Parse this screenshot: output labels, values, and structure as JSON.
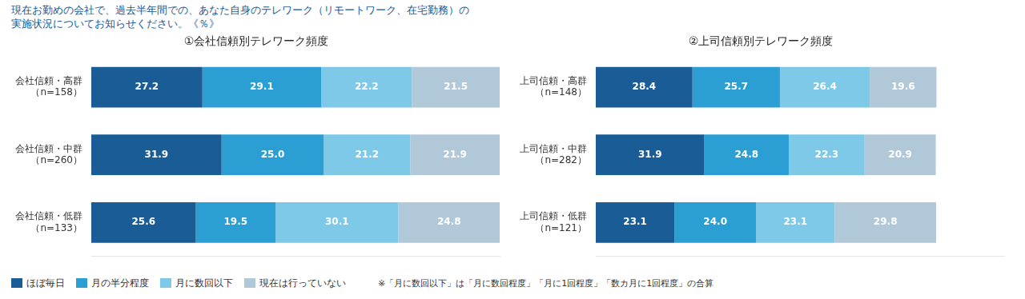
{
  "title": [
    "現在お勤めの会社で、過去半年間での、あなた自身のテレワーク（リモートワーク、在宅勤務）の",
    "実施状況についてお知らせください。《％》"
  ],
  "annotations": [
    "※「月に数回以下」は「月に数回程度」「月に1回程度」「数カ月に1回程度」の合算"
  ],
  "chart_data": [
    {
      "type": "bar",
      "orientation": "horizontal",
      "stacked": true,
      "title": "①会社信頼別テレワーク頻度",
      "categories": [
        [
          "会社信頼・高群",
          "（n=158）"
        ],
        [
          "会社信頼・中群",
          "（n=260）"
        ],
        [
          "会社信頼・低群",
          "（n=133）"
        ]
      ],
      "series": [
        {
          "name": "ほぼ毎日",
          "color": "#1a5c96",
          "values": [
            27.2,
            31.9,
            25.6
          ],
          "value_labels": [
            "27.2",
            "31.9",
            "25.6"
          ]
        },
        {
          "name": "月の半分程度",
          "color": "#2b9fd4",
          "values": [
            29.1,
            25.0,
            19.5
          ],
          "value_labels": [
            "29.1",
            "25.0",
            "19.5"
          ]
        },
        {
          "name": "月に数回以下",
          "color": "#7ec8e8",
          "values": [
            22.2,
            21.2,
            30.1
          ],
          "value_labels": [
            "22.2",
            "21.2",
            "30.1"
          ]
        },
        {
          "name": "現在は行っていない",
          "color": "#b0c8d8",
          "values": [
            21.5,
            21.9,
            24.8
          ],
          "value_labels": [
            "21.5",
            "21.9",
            "24.8"
          ]
        }
      ],
      "xlim": [
        0,
        100
      ],
      "grid": false,
      "tick_labels": "y",
      "data_labels": true,
      "legend": "bottom"
    },
    {
      "type": "bar",
      "orientation": "horizontal",
      "stacked": true,
      "title": "②上司信頼別テレワーク頻度",
      "categories": [
        [
          "上司信頼・高群",
          "（n=148）"
        ],
        [
          "上司信頼・中群",
          "（n=282）"
        ],
        [
          "上司信頼・低群",
          "（n=121）"
        ]
      ],
      "series": [
        {
          "name": "ほぼ毎日",
          "color": "#1a5c96",
          "values": [
            28.4,
            31.9,
            23.1
          ],
          "value_labels": [
            "28.4",
            "31.9",
            "23.1"
          ]
        },
        {
          "name": "月の半分程度",
          "color": "#2b9fd4",
          "values": [
            25.7,
            24.8,
            24.0
          ],
          "value_labels": [
            "25.7",
            "24.8",
            "24.0"
          ]
        },
        {
          "name": "月に数回以下",
          "color": "#7ec8e8",
          "values": [
            26.4,
            22.3,
            23.1
          ],
          "value_labels": [
            "26.4",
            "22.3",
            "23.1"
          ]
        },
        {
          "name": "現在は行っていない",
          "color": "#b0c8d8",
          "values": [
            19.6,
            20.9,
            29.8
          ],
          "value_labels": [
            "19.6",
            "20.9",
            "29.8"
          ]
        }
      ],
      "xlim": [
        0,
        120
      ],
      "grid": false,
      "tick_labels": "y",
      "data_labels": true
    }
  ]
}
